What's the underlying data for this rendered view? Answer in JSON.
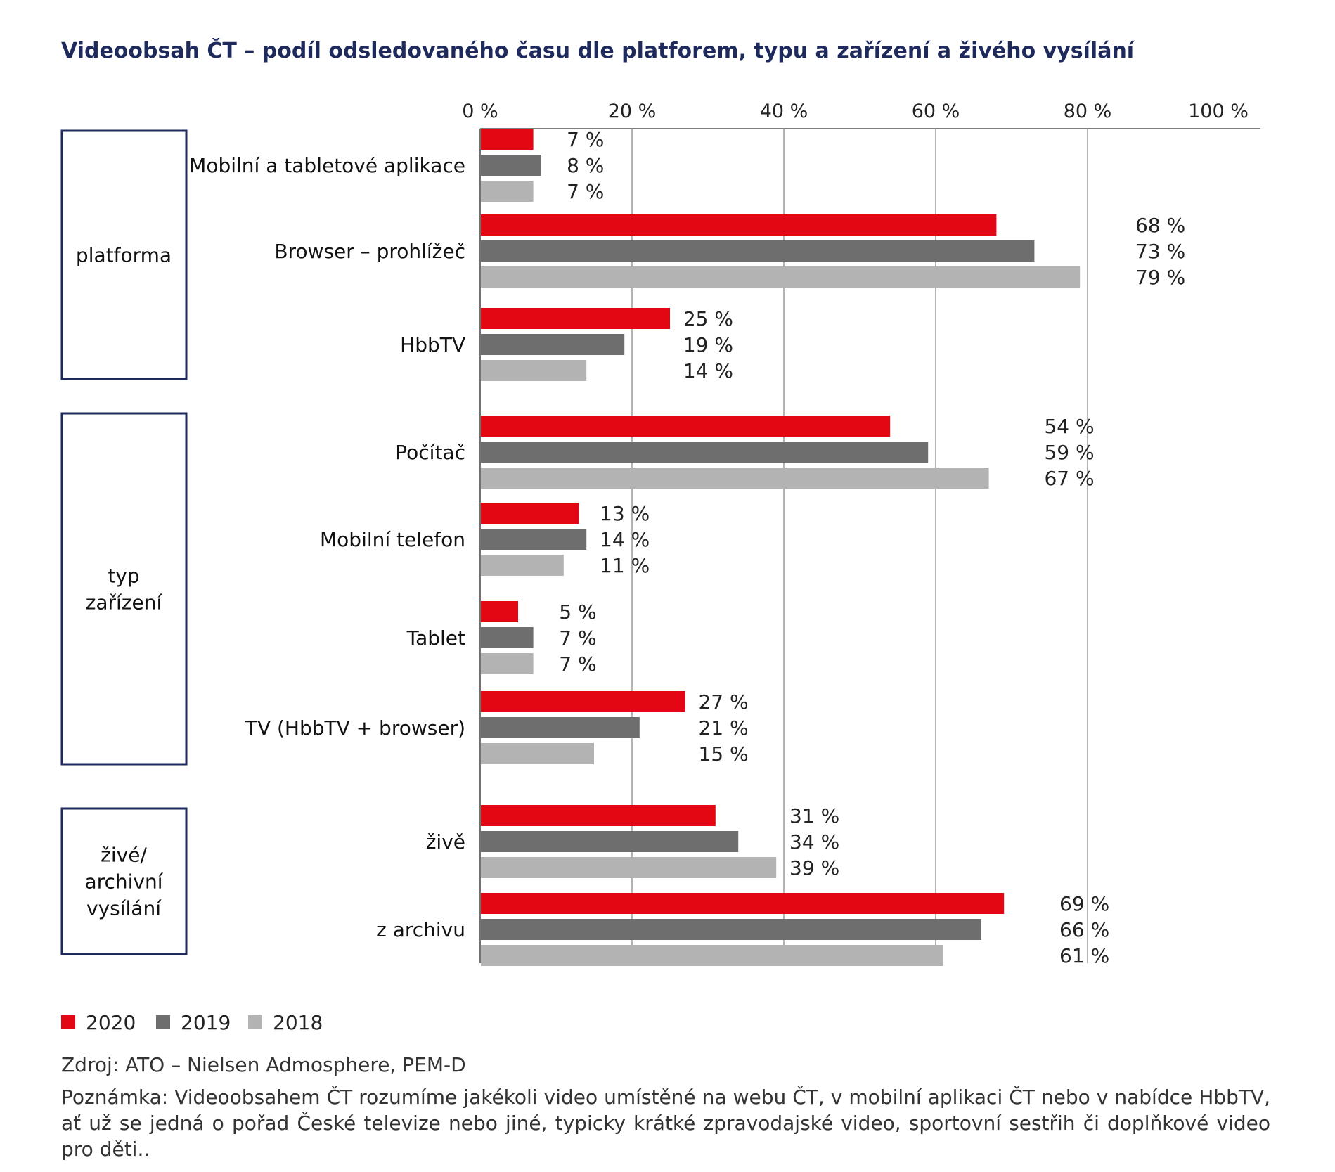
{
  "chart_data": {
    "type": "bar",
    "orientation": "horizontal",
    "title": "Videoobsah ČT – podíl odsledovaného času dle platforem, typu a zařízení a živého vysílání",
    "xlim": [
      0,
      100
    ],
    "x_ticks": [
      "0 %",
      "20 %",
      "40 %",
      "60 %",
      "80 %",
      "100 %"
    ],
    "grid": true,
    "legend_position": "bottom-left",
    "colors": {
      "2020": "#e30613",
      "2019": "#6e6e6e",
      "2018": "#b3b3b3",
      "frame": "#1f2a5c"
    },
    "series_names": [
      "2020",
      "2019",
      "2018"
    ],
    "groups": [
      {
        "label": [
          "platforma"
        ],
        "categories": [
          0,
          1,
          2
        ]
      },
      {
        "label": [
          "typ",
          "zařízení"
        ],
        "categories": [
          3,
          4,
          5,
          6
        ]
      },
      {
        "label": [
          "živé/",
          "archivní",
          "vysílání"
        ],
        "categories": [
          7,
          8
        ]
      }
    ],
    "categories": [
      {
        "name": "Mobilní a tabletové aplikace",
        "values": [
          7,
          8,
          7
        ],
        "labels": [
          "7 %",
          "8 %",
          "7 %"
        ]
      },
      {
        "name": "Browser – prohlížeč",
        "values": [
          68,
          73,
          79
        ],
        "labels": [
          "68 %",
          "73 %",
          "79 %"
        ]
      },
      {
        "name": "HbbTV",
        "values": [
          25,
          19,
          14
        ],
        "labels": [
          "25 %",
          "19 %",
          "14 %"
        ]
      },
      {
        "name": "Počítač",
        "values": [
          54,
          59,
          67
        ],
        "labels": [
          "54 %",
          "59 %",
          "67 %"
        ]
      },
      {
        "name": "Mobilní telefon",
        "values": [
          13,
          14,
          11
        ],
        "labels": [
          "13 %",
          "14 %",
          "11 %"
        ]
      },
      {
        "name": "Tablet",
        "values": [
          5,
          7,
          7
        ],
        "labels": [
          "5 %",
          "7 %",
          "7 %"
        ]
      },
      {
        "name": "TV (HbbTV + browser)",
        "values": [
          27,
          21,
          15
        ],
        "labels": [
          "27 %",
          "21 %",
          "15 %"
        ]
      },
      {
        "name": "živě",
        "values": [
          31,
          34,
          39
        ],
        "labels": [
          "31 %",
          "34 %",
          "39 %"
        ]
      },
      {
        "name": "z archivu",
        "values": [
          69,
          66,
          61
        ],
        "labels": [
          "69 %",
          "66 %",
          "61 %"
        ]
      }
    ]
  },
  "source": "Zdroj: ATO – Nielsen Admosphere, PEM-D",
  "note": "Poznámka: Videoobsahem ČT rozumíme jakékoli video umístěné na webu ČT, v mobilní aplikaci ČT nebo v nabídce HbbTV, ať už se jedná o pořad České televize nebo jiné, typicky krátké zpravodajské video, sportovní sestřih či doplňkové video pro děti.."
}
